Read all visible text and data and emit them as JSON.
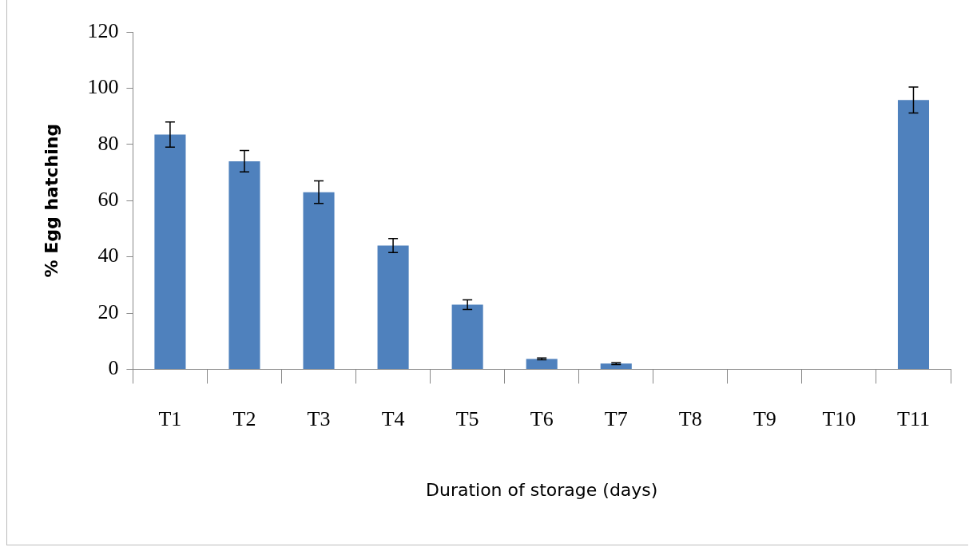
{
  "chart_data": {
    "type": "bar",
    "xlabel": "Duration of storage (days)",
    "ylabel": "% Egg hatching",
    "categories": [
      "T1",
      "T2",
      "T3",
      "T4",
      "T5",
      "T6",
      "T7",
      "T8",
      "T9",
      "T10",
      "T11"
    ],
    "values": [
      83.5,
      74,
      63,
      44,
      23,
      3.7,
      2,
      0,
      0,
      0,
      95.8
    ],
    "errors": [
      4.5,
      3.8,
      4,
      2.5,
      1.7,
      0.3,
      0.3,
      null,
      null,
      null,
      4.6
    ],
    "color": "#4f81bd",
    "ylim": [
      0,
      120
    ],
    "yticks": [
      0,
      20,
      40,
      60,
      80,
      100,
      120
    ],
    "grid": false,
    "legend": false
  }
}
